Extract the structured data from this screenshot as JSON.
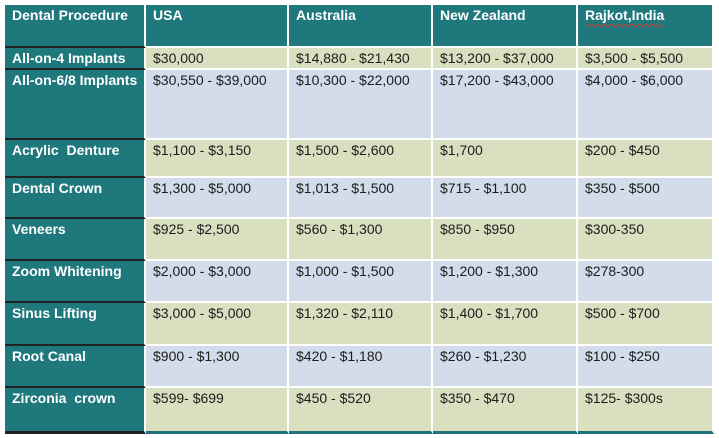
{
  "title": "Dental procedure cost comparison table",
  "chart_data": {
    "type": "table",
    "columns": [
      "Dental Procedure",
      "USA",
      "Australia",
      "New Zealand",
      "Rajkot,India"
    ],
    "rows": [
      [
        "All-on-4 Implants",
        "$30,000",
        "$14,880 - $21,430",
        "$13,200 - $37,000",
        "$3,500 - $5,500"
      ],
      [
        "All-on-6/8 Implants",
        "$30,550 - $39,000",
        "$10,300 - $22,000",
        "$17,200 - $43,000",
        "$4,000 - $6,000"
      ],
      [
        "Acrylic  Denture",
        "$1,100 - $3,150",
        "$1,500 - $2,600",
        "$1,700",
        "$200 - $450"
      ],
      [
        "Dental Crown",
        "$1,300 - $5,000",
        "$1,013 - $1,500",
        "$715 - $1,100",
        "$350 - $500"
      ],
      [
        "Veneers",
        "$925 - $2,500",
        "$560 - $1,300",
        "$850 - $950",
        "$300-350"
      ],
      [
        "Zoom Whitening",
        "$2,000 - $3,000",
        "$1,000 - $1,500",
        "$1,200 - $1,300",
        "$278-300"
      ],
      [
        "Sinus Lifting",
        "$3,000 - $5,000",
        "$1,320 - $2,110",
        "$1,400 - $1,700",
        "$500 - $700"
      ],
      [
        "Root Canal",
        "$900 - $1,300",
        "$420 - $1,180",
        "$260 - $1,230",
        "$100 - $250"
      ],
      [
        "Zirconia  crown",
        "$599- $699",
        "$450 - $520",
        "$350 - $470",
        "$125- $300s"
      ]
    ],
    "layout": {
      "header_fill": "teal",
      "first_column_fill": "teal",
      "row_banding": [
        "green",
        "blue"
      ],
      "gridlines": "white between cells, dark lines between first-column cells",
      "spellcheck_underline_on": "Rajkot,India"
    }
  },
  "colors": {
    "teal": "#1f787b",
    "teal-border": "#1f7078",
    "band-green": "#d8e0c0",
    "band-blue": "#d2dcea",
    "ink": "#1c1c1c",
    "dark-line": "#1e2424",
    "squiggle": "#d23a2a"
  }
}
